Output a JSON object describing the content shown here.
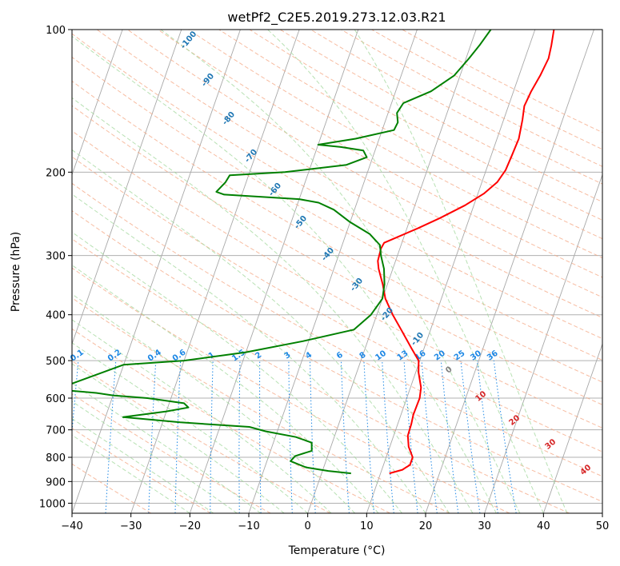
{
  "chart_data": {
    "type": "line",
    "title": "wetPf2_C2E5.2019.273.12.03.R21",
    "xlabel": "Temperature (°C)",
    "ylabel": "Pressure (hPa)",
    "xlim": [
      -40,
      50
    ],
    "ylim": [
      1050,
      100
    ],
    "y_scale": "log",
    "grid": true,
    "x_ticks": [
      -40,
      -30,
      -20,
      -10,
      0,
      10,
      20,
      30,
      40,
      50
    ],
    "y_ticks": [
      100,
      200,
      300,
      400,
      500,
      600,
      700,
      800,
      900,
      1000
    ],
    "dry_adiabat_labels": [
      "-100",
      "-90",
      "-80",
      "-70",
      "-60",
      "-50",
      "-40",
      "-30",
      "-20",
      "-10"
    ],
    "mixing_ratio_labels": [
      "0.1",
      "0.2",
      "0.4",
      "0.6",
      "1",
      "1.5",
      "2",
      "3",
      "4",
      "6",
      "8",
      "10",
      "13",
      "16",
      "20",
      "25",
      "30",
      "36"
    ],
    "isotherm_labels": [
      "0",
      "10",
      "20",
      "30",
      "40"
    ],
    "colors": {
      "temperature": "#ff0000",
      "dewpoint": "#008000",
      "mixing_ratio": "#1e88e5",
      "dry_adiabat_label": "#1f77b4",
      "isotherm_label": "#d62728",
      "isotherm_zero_label": "#808080"
    },
    "series": [
      {
        "role": "temperature",
        "color": "#ff0000",
        "points": [
          [
            11.5,
            865
          ],
          [
            13.5,
            850
          ],
          [
            14.5,
            830
          ],
          [
            14.5,
            800
          ],
          [
            13.2,
            760
          ],
          [
            12.4,
            720
          ],
          [
            12.3,
            680
          ],
          [
            12.1,
            650
          ],
          [
            12.2,
            600
          ],
          [
            11.8,
            570
          ],
          [
            10.5,
            530
          ],
          [
            9.8,
            500
          ],
          [
            7.8,
            470
          ],
          [
            5.0,
            430
          ],
          [
            2.7,
            400
          ],
          [
            0.5,
            370
          ],
          [
            -0.8,
            345
          ],
          [
            -2.4,
            320
          ],
          [
            -3.0,
            308
          ],
          [
            -3.2,
            290
          ],
          [
            -3.0,
            282
          ],
          [
            -1.3,
            275
          ],
          [
            1.8,
            263
          ],
          [
            5.0,
            250
          ],
          [
            8.5,
            235
          ],
          [
            11.0,
            222
          ],
          [
            12.6,
            210
          ],
          [
            13.3,
            198
          ],
          [
            13.5,
            185
          ],
          [
            13.7,
            170
          ],
          [
            13.2,
            155
          ],
          [
            12.7,
            145
          ],
          [
            13.0,
            135
          ],
          [
            13.6,
            125
          ],
          [
            14.0,
            115
          ],
          [
            13.7,
            108
          ],
          [
            13.2,
            100
          ]
        ]
      },
      {
        "role": "dewpoint",
        "color": "#008000",
        "points": [
          [
            5.0,
            865
          ],
          [
            1.0,
            855
          ],
          [
            -3.0,
            840
          ],
          [
            -6.0,
            815
          ],
          [
            -5.5,
            795
          ],
          [
            -3.0,
            775
          ],
          [
            -3.5,
            745
          ],
          [
            -6.5,
            725
          ],
          [
            -12.0,
            705
          ],
          [
            -15.0,
            690
          ],
          [
            -27.0,
            675
          ],
          [
            -37.0,
            658
          ],
          [
            -30.0,
            640
          ],
          [
            -26.5,
            628
          ],
          [
            -27.5,
            615
          ],
          [
            -34.0,
            600
          ],
          [
            -40.0,
            592
          ],
          [
            -43.0,
            585
          ],
          [
            -50.0,
            575
          ],
          [
            -40.0,
            510
          ],
          [
            -30.0,
            500
          ],
          [
            -20.0,
            480
          ],
          [
            -11.0,
            455
          ],
          [
            -3.0,
            430
          ],
          [
            -1.0,
            400
          ],
          [
            0.0,
            370
          ],
          [
            -0.5,
            345
          ],
          [
            -1.5,
            320
          ],
          [
            -2.8,
            300
          ],
          [
            -3.6,
            285
          ],
          [
            -6.0,
            270
          ],
          [
            -10.0,
            255
          ],
          [
            -13.5,
            240
          ],
          [
            -16.5,
            232
          ],
          [
            -20.0,
            228
          ],
          [
            -33.0,
            223
          ],
          [
            -34.5,
            220
          ],
          [
            -33.5,
            210
          ],
          [
            -33.2,
            203
          ],
          [
            -24.0,
            200
          ],
          [
            -14.0,
            193
          ],
          [
            -11.0,
            186
          ],
          [
            -12.0,
            180
          ],
          [
            -16.0,
            177
          ],
          [
            -20.0,
            175
          ],
          [
            -14.0,
            170
          ],
          [
            -8.0,
            163
          ],
          [
            -7.8,
            157
          ],
          [
            -8.5,
            150
          ],
          [
            -8.0,
            143
          ],
          [
            -4.0,
            135
          ],
          [
            -1.0,
            125
          ],
          [
            0.5,
            115
          ],
          [
            1.5,
            108
          ],
          [
            2.5,
            100
          ]
        ]
      }
    ]
  }
}
